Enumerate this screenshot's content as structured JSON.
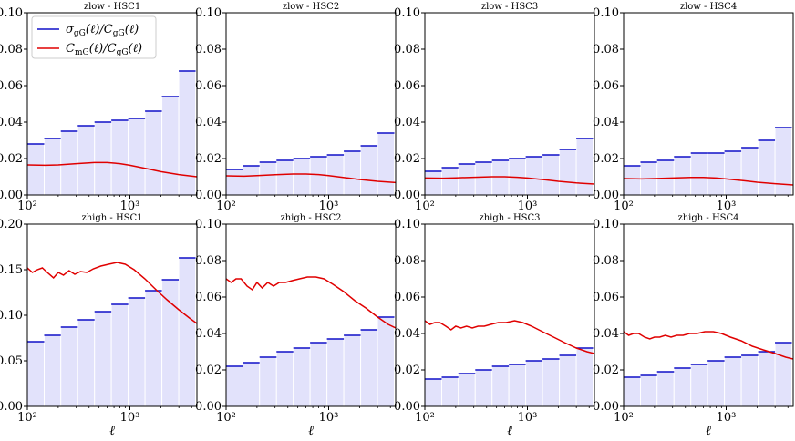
{
  "legend": {
    "entries": [
      {
        "series": "sigma",
        "color": "#1010c8",
        "parts": [
          [
            "σ",
            ""
          ],
          [
            "gG",
            "sub"
          ],
          [
            "(ℓ)/",
            ""
          ],
          [
            "C",
            ""
          ],
          [
            "gG",
            "sub"
          ],
          [
            "(ℓ)",
            ""
          ]
        ]
      },
      {
        "series": "cmg",
        "color": "#e00000",
        "parts": [
          [
            "C",
            ""
          ],
          [
            "mG",
            "sub"
          ],
          [
            "(ℓ)/",
            ""
          ],
          [
            "C",
            ""
          ],
          [
            "gG",
            "sub"
          ],
          [
            "(ℓ)",
            ""
          ]
        ]
      }
    ]
  },
  "colors": {
    "bar_fill": "#e2e2fb",
    "bar_edge": "#ffffff",
    "sigma": "#1010c8",
    "cmg": "#e00000"
  },
  "chart_data": [
    {
      "type": "bar",
      "title": "zlow - HSC1",
      "xlabel": "",
      "xscale": "log",
      "xlim": [
        100,
        4500
      ],
      "ylim": [
        0,
        0.1
      ],
      "yticks": [
        0.0,
        0.02,
        0.04,
        0.06,
        0.08,
        0.1
      ],
      "ytick_labels": [
        "0.00",
        "0.02",
        "0.04",
        "0.06",
        "0.08",
        "0.10"
      ],
      "xticks": [
        100,
        1000
      ],
      "xtick_labels": [
        "10²",
        "10³"
      ],
      "bin_edges": [
        100,
        146,
        212,
        310,
        452,
        659,
        962,
        1404,
        2049,
        2991,
        4365
      ],
      "sigma_ratio": [
        0.028,
        0.031,
        0.035,
        0.038,
        0.04,
        0.041,
        0.042,
        0.046,
        0.054,
        0.068
      ],
      "cmg_curve": {
        "x": [
          100,
          150,
          200,
          300,
          450,
          600,
          800,
          1000,
          1500,
          2000,
          3000,
          4500
        ],
        "y": [
          0.0165,
          0.0163,
          0.0165,
          0.0172,
          0.0178,
          0.0178,
          0.0172,
          0.0163,
          0.0143,
          0.0128,
          0.0112,
          0.01
        ]
      }
    },
    {
      "type": "bar",
      "title": "zlow - HSC2",
      "xlabel": "",
      "xscale": "log",
      "xlim": [
        100,
        4500
      ],
      "ylim": [
        0,
        0.1
      ],
      "yticks": [
        0.0,
        0.02,
        0.04,
        0.06,
        0.08,
        0.1
      ],
      "ytick_labels": [
        "0.00",
        "0.02",
        "0.04",
        "0.06",
        "0.08",
        "0.10"
      ],
      "xticks": [
        100,
        1000
      ],
      "xtick_labels": [
        "10²",
        "10³"
      ],
      "bin_edges": [
        100,
        146,
        212,
        310,
        452,
        659,
        962,
        1404,
        2049,
        2991,
        4365
      ],
      "sigma_ratio": [
        0.014,
        0.016,
        0.018,
        0.019,
        0.02,
        0.021,
        0.022,
        0.024,
        0.027,
        0.034
      ],
      "cmg_curve": {
        "x": [
          100,
          150,
          200,
          300,
          450,
          600,
          800,
          1000,
          1500,
          2000,
          3000,
          4500
        ],
        "y": [
          0.0105,
          0.0103,
          0.0106,
          0.0111,
          0.0115,
          0.0115,
          0.0112,
          0.0106,
          0.0094,
          0.0085,
          0.0075,
          0.0068
        ]
      }
    },
    {
      "type": "bar",
      "title": "zlow - HSC3",
      "xlabel": "",
      "xscale": "log",
      "xlim": [
        100,
        4500
      ],
      "ylim": [
        0,
        0.1
      ],
      "yticks": [
        0.0,
        0.02,
        0.04,
        0.06,
        0.08,
        0.1
      ],
      "ytick_labels": [
        "0.00",
        "0.02",
        "0.04",
        "0.06",
        "0.08",
        "0.10"
      ],
      "xticks": [
        100,
        1000
      ],
      "xtick_labels": [
        "10²",
        "10³"
      ],
      "bin_edges": [
        100,
        146,
        212,
        310,
        452,
        659,
        962,
        1404,
        2049,
        2991,
        4365
      ],
      "sigma_ratio": [
        0.013,
        0.015,
        0.017,
        0.018,
        0.019,
        0.02,
        0.021,
        0.022,
        0.025,
        0.031
      ],
      "cmg_curve": {
        "x": [
          100,
          150,
          200,
          300,
          450,
          600,
          800,
          1000,
          1500,
          2000,
          3000,
          4500
        ],
        "y": [
          0.0093,
          0.0092,
          0.0094,
          0.0097,
          0.01,
          0.01,
          0.0097,
          0.0093,
          0.0083,
          0.0075,
          0.0066,
          0.006
        ]
      }
    },
    {
      "type": "bar",
      "title": "zlow - HSC4",
      "xlabel": "",
      "xscale": "log",
      "xlim": [
        100,
        4500
      ],
      "ylim": [
        0,
        0.1
      ],
      "yticks": [
        0.0,
        0.02,
        0.04,
        0.06,
        0.08,
        0.1
      ],
      "ytick_labels": [
        "0.00",
        "0.02",
        "0.04",
        "0.06",
        "0.08",
        "0.10"
      ],
      "xticks": [
        100,
        1000
      ],
      "xtick_labels": [
        "10²",
        "10³"
      ],
      "bin_edges": [
        100,
        146,
        212,
        310,
        452,
        659,
        962,
        1404,
        2049,
        2991,
        4365
      ],
      "sigma_ratio": [
        0.016,
        0.018,
        0.019,
        0.021,
        0.023,
        0.023,
        0.024,
        0.026,
        0.03,
        0.037
      ],
      "cmg_curve": {
        "x": [
          100,
          150,
          200,
          300,
          450,
          600,
          800,
          1000,
          1500,
          2000,
          3000,
          4500
        ],
        "y": [
          0.009,
          0.0088,
          0.009,
          0.0093,
          0.0096,
          0.0096,
          0.0093,
          0.0088,
          0.0078,
          0.007,
          0.0062,
          0.0055
        ]
      }
    },
    {
      "type": "bar",
      "title": "zhigh - HSC1",
      "xlabel": "ℓ",
      "xscale": "log",
      "xlim": [
        100,
        4500
      ],
      "ylim": [
        0,
        0.2
      ],
      "yticks": [
        0.0,
        0.05,
        0.1,
        0.15,
        0.2
      ],
      "ytick_labels": [
        "0.00",
        "0.05",
        "0.10",
        "0.15",
        "0.20"
      ],
      "xticks": [
        100,
        1000
      ],
      "xtick_labels": [
        "10²",
        "10³"
      ],
      "bin_edges": [
        100,
        146,
        212,
        310,
        452,
        659,
        962,
        1404,
        2049,
        2991,
        4365
      ],
      "sigma_ratio": [
        0.071,
        0.078,
        0.087,
        0.095,
        0.104,
        0.112,
        0.119,
        0.127,
        0.139,
        0.163
      ],
      "cmg_curve": {
        "x": [
          100,
          112,
          125,
          140,
          160,
          180,
          200,
          225,
          255,
          290,
          330,
          380,
          440,
          520,
          620,
          750,
          900,
          1100,
          1400,
          1800,
          2300,
          3000,
          3800,
          4500
        ],
        "y": [
          0.152,
          0.147,
          0.15,
          0.152,
          0.146,
          0.141,
          0.147,
          0.144,
          0.149,
          0.145,
          0.148,
          0.147,
          0.151,
          0.154,
          0.156,
          0.158,
          0.156,
          0.15,
          0.14,
          0.128,
          0.117,
          0.106,
          0.097,
          0.091
        ]
      }
    },
    {
      "type": "bar",
      "title": "zhigh - HSC2",
      "xlabel": "ℓ",
      "xscale": "log",
      "xlim": [
        100,
        4500
      ],
      "ylim": [
        0,
        0.1
      ],
      "yticks": [
        0.0,
        0.02,
        0.04,
        0.06,
        0.08,
        0.1
      ],
      "ytick_labels": [
        "0.00",
        "0.02",
        "0.04",
        "0.06",
        "0.08",
        "0.10"
      ],
      "xticks": [
        100,
        1000
      ],
      "xtick_labels": [
        "10²",
        "10³"
      ],
      "bin_edges": [
        100,
        146,
        212,
        310,
        452,
        659,
        962,
        1404,
        2049,
        2991,
        4365
      ],
      "sigma_ratio": [
        0.022,
        0.024,
        0.027,
        0.03,
        0.032,
        0.035,
        0.037,
        0.039,
        0.042,
        0.049
      ],
      "cmg_curve": {
        "x": [
          100,
          112,
          125,
          140,
          160,
          180,
          200,
          225,
          255,
          290,
          330,
          380,
          440,
          520,
          620,
          750,
          900,
          1100,
          1400,
          1800,
          2300,
          3000,
          3800,
          4500
        ],
        "y": [
          0.07,
          0.068,
          0.07,
          0.07,
          0.066,
          0.064,
          0.068,
          0.065,
          0.068,
          0.066,
          0.068,
          0.068,
          0.069,
          0.07,
          0.071,
          0.071,
          0.07,
          0.067,
          0.063,
          0.058,
          0.054,
          0.049,
          0.045,
          0.043
        ]
      }
    },
    {
      "type": "bar",
      "title": "zhigh - HSC3",
      "xlabel": "ℓ",
      "xscale": "log",
      "xlim": [
        100,
        4500
      ],
      "ylim": [
        0,
        0.1
      ],
      "yticks": [
        0.0,
        0.02,
        0.04,
        0.06,
        0.08,
        0.1
      ],
      "ytick_labels": [
        "0.00",
        "0.02",
        "0.04",
        "0.06",
        "0.08",
        "0.10"
      ],
      "xticks": [
        100,
        1000
      ],
      "xtick_labels": [
        "10²",
        "10³"
      ],
      "bin_edges": [
        100,
        146,
        212,
        310,
        452,
        659,
        962,
        1404,
        2049,
        2991,
        4365
      ],
      "sigma_ratio": [
        0.015,
        0.016,
        0.018,
        0.02,
        0.022,
        0.023,
        0.025,
        0.026,
        0.028,
        0.032
      ],
      "cmg_curve": {
        "x": [
          100,
          112,
          125,
          140,
          160,
          180,
          200,
          225,
          255,
          290,
          330,
          380,
          440,
          520,
          620,
          750,
          900,
          1100,
          1400,
          1800,
          2300,
          3000,
          3800,
          4500
        ],
        "y": [
          0.047,
          0.045,
          0.046,
          0.046,
          0.044,
          0.042,
          0.044,
          0.043,
          0.044,
          0.043,
          0.044,
          0.044,
          0.045,
          0.046,
          0.046,
          0.047,
          0.046,
          0.044,
          0.041,
          0.038,
          0.035,
          0.032,
          0.03,
          0.029
        ]
      }
    },
    {
      "type": "bar",
      "title": "zhigh - HSC4",
      "xlabel": "ℓ",
      "xscale": "log",
      "xlim": [
        100,
        4500
      ],
      "ylim": [
        0,
        0.1
      ],
      "yticks": [
        0.0,
        0.02,
        0.04,
        0.06,
        0.08,
        0.1
      ],
      "ytick_labels": [
        "0.00",
        "0.02",
        "0.04",
        "0.06",
        "0.08",
        "0.10"
      ],
      "xticks": [
        100,
        1000
      ],
      "xtick_labels": [
        "10²",
        "10³"
      ],
      "bin_edges": [
        100,
        146,
        212,
        310,
        452,
        659,
        962,
        1404,
        2049,
        2991,
        4365
      ],
      "sigma_ratio": [
        0.016,
        0.017,
        0.019,
        0.021,
        0.023,
        0.025,
        0.027,
        0.028,
        0.03,
        0.035
      ],
      "cmg_curve": {
        "x": [
          100,
          112,
          125,
          140,
          160,
          180,
          200,
          225,
          255,
          290,
          330,
          380,
          440,
          520,
          620,
          750,
          900,
          1100,
          1400,
          1800,
          2300,
          3000,
          3800,
          4500
        ],
        "y": [
          0.041,
          0.039,
          0.04,
          0.04,
          0.038,
          0.037,
          0.038,
          0.038,
          0.039,
          0.038,
          0.039,
          0.039,
          0.04,
          0.04,
          0.041,
          0.041,
          0.04,
          0.038,
          0.036,
          0.033,
          0.031,
          0.029,
          0.027,
          0.026
        ]
      }
    }
  ]
}
